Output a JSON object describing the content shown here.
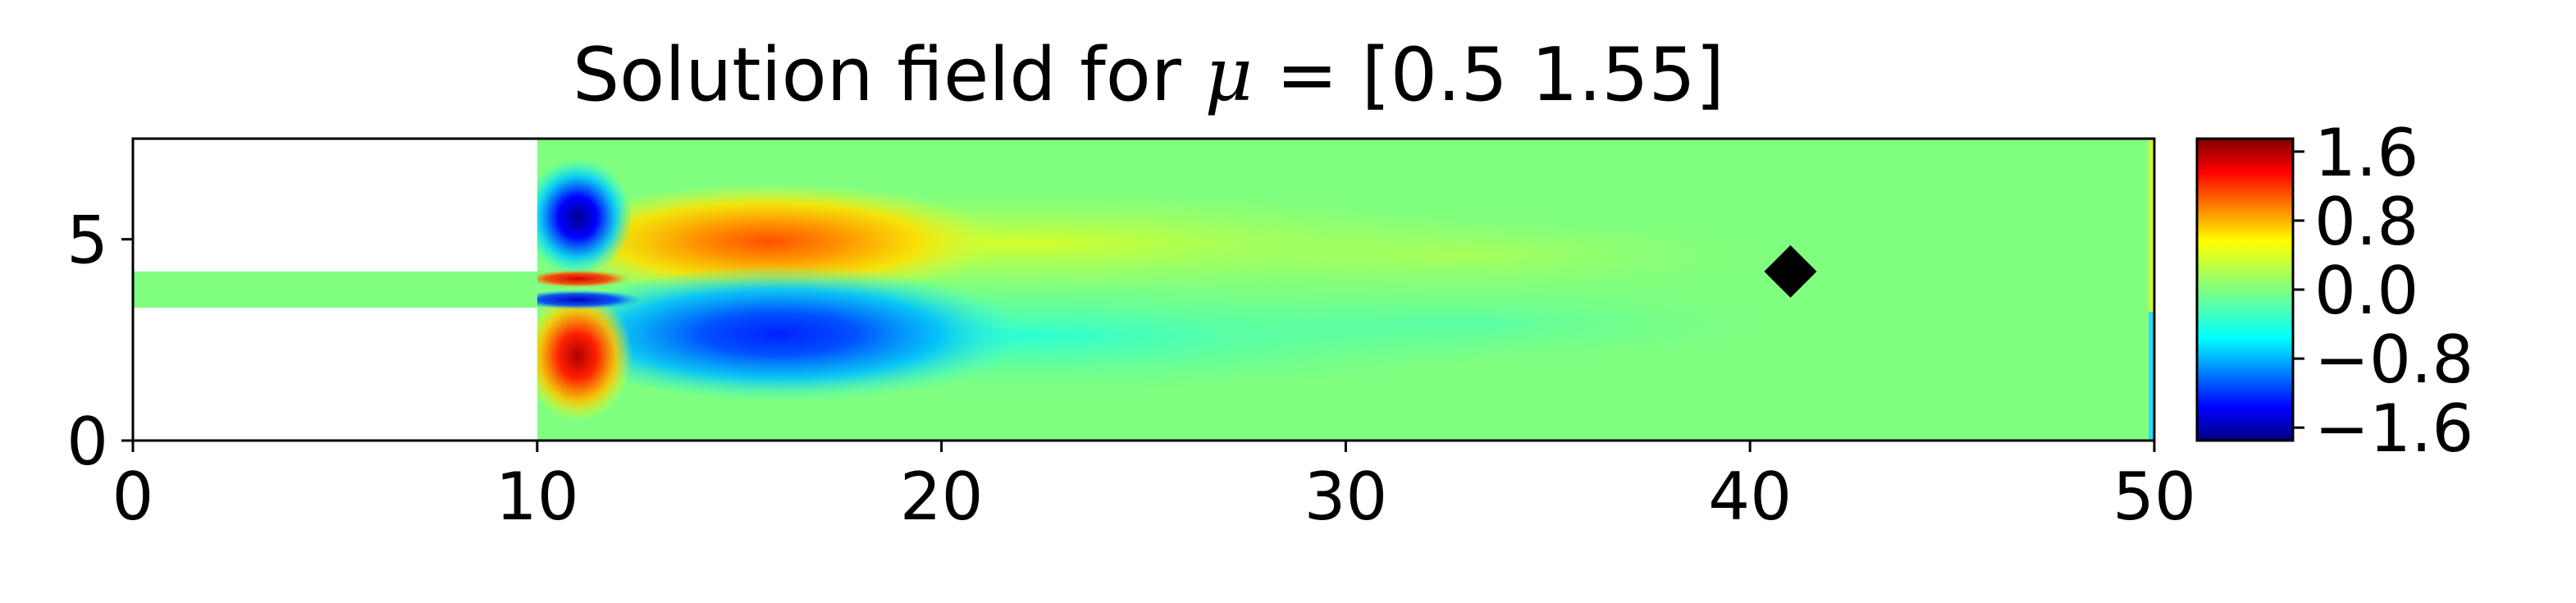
{
  "chart_data": {
    "type": "heatmap",
    "title": {
      "prefix": "Solution field for ",
      "symbol": "μ",
      "suffix": " = [0.5  1.55]"
    },
    "xlabel": "",
    "ylabel": "",
    "xlim": [
      0,
      50
    ],
    "ylim": [
      0,
      7.5
    ],
    "x_ticks": [
      0,
      10,
      20,
      30,
      40,
      50
    ],
    "x_tick_labels": [
      "0",
      "10",
      "20",
      "30",
      "40",
      "50"
    ],
    "y_ticks": [
      0,
      5
    ],
    "y_tick_labels": [
      "0",
      "5"
    ],
    "domain": {
      "inlet_channel": {
        "x": [
          0,
          10
        ],
        "y": [
          3.3,
          4.2
        ]
      },
      "main_chamber": {
        "x": [
          10,
          50
        ],
        "y": [
          0,
          7.5
        ]
      }
    },
    "colormap": "jet",
    "colorbar": {
      "range": [
        -1.75,
        1.75
      ],
      "ticks": [
        1.6,
        0.8,
        0.0,
        -0.8,
        -1.6
      ],
      "tick_labels": [
        "1.6",
        "0.8",
        "0.0",
        "−0.8",
        "−1.6"
      ],
      "placement": "right"
    },
    "field_features": [
      {
        "name": "upper-vortex",
        "x": 11.0,
        "y": 5.6,
        "value": -1.5
      },
      {
        "name": "lower-vortex",
        "x": 11.0,
        "y": 2.2,
        "value": 1.6
      },
      {
        "name": "upper-shear-layer",
        "x": 16.5,
        "y": 4.9,
        "value": 1.1
      },
      {
        "name": "lower-shear-layer",
        "x": 16.5,
        "y": 2.7,
        "value": -1.3
      },
      {
        "name": "jet-core-upper",
        "x": 10.8,
        "y": 4.05,
        "value": 1.8
      },
      {
        "name": "jet-core-lower",
        "x": 10.8,
        "y": 3.45,
        "value": -1.7
      }
    ],
    "marker": {
      "shape": "diamond",
      "color": "#000000",
      "x": 41,
      "y": 4.2
    },
    "grid": false
  }
}
